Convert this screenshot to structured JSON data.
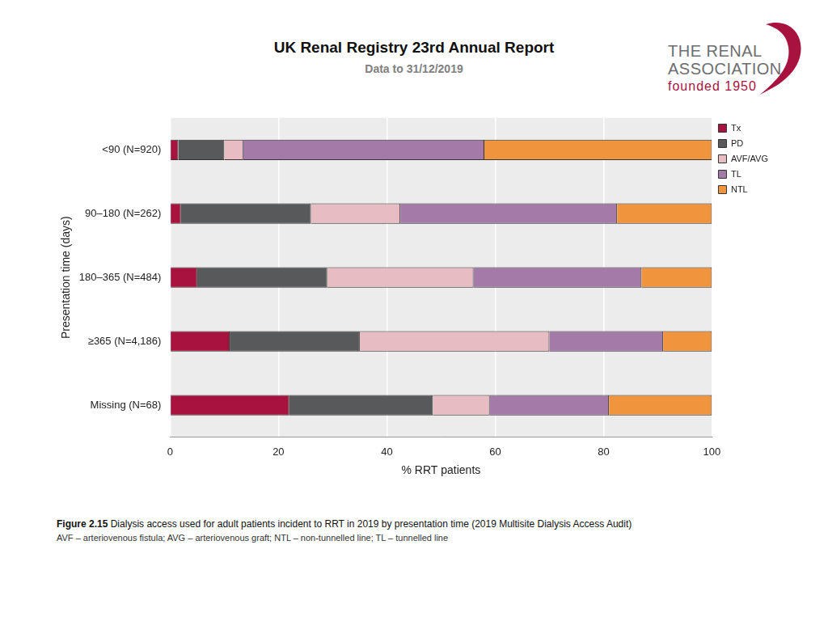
{
  "header": {
    "title": "UK Renal Registry 23rd Annual Report",
    "subtitle": "Data to 31/12/2019",
    "logo": [
      "THE RENAL",
      "ASSOCIATION",
      "founded 1950"
    ]
  },
  "caption": {
    "label": "Figure 2.15",
    "text": "Dialysis access used for adult patients incident to RRT in 2019 by presentation time (2019 Multisite Dialysis Access Audit)",
    "note": "AVF – arteriovenous fistula; AVG – arteriovenous graft; NTL – non-tunnelled line; TL – tunnelled line"
  },
  "chart_data": {
    "type": "bar",
    "orientation": "horizontal",
    "stacked": true,
    "x_label": "% RRT patients",
    "y_label": "Presentation time (days)",
    "categories": [
      "<90 (N=920)",
      "90–180 (N=262)",
      "180–365 (N=484)",
      "≥365 (N=4,186)",
      "Missing (N=68)"
    ],
    "series": [
      {
        "name": "Tx",
        "color": "#a8123e",
        "values": [
          1.5,
          2,
          5,
          11,
          22
        ]
      },
      {
        "name": "PD",
        "color": "#58595b",
        "values": [
          8.5,
          24,
          24,
          24,
          26.5
        ]
      },
      {
        "name": "AVF/AVG",
        "color": "#e8bcc3",
        "values": [
          3.5,
          16.5,
          27,
          35,
          10.5
        ]
      },
      {
        "name": "TL",
        "color": "#a47aa8",
        "values": [
          44.5,
          40,
          31,
          21,
          22
        ]
      },
      {
        "name": "NTL",
        "color": "#f0943e",
        "values": [
          42,
          17.5,
          13,
          9,
          19
        ]
      }
    ],
    "xlim": [
      0,
      100
    ],
    "xticks": [
      0,
      20,
      40,
      60,
      80,
      100
    ],
    "grid": true,
    "legend": "right"
  }
}
